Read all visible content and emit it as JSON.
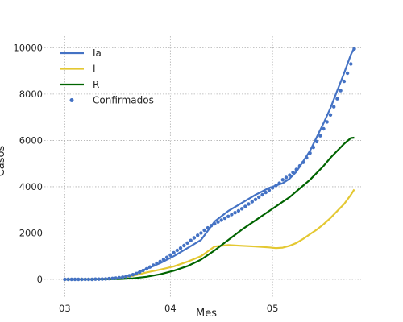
{
  "chart_data": {
    "type": "line",
    "title": "",
    "xlabel": "Mes",
    "ylabel": "Casos",
    "x_ticks": [
      {
        "label": "03",
        "day": 0
      },
      {
        "label": "04",
        "day": 31
      },
      {
        "label": "05",
        "day": 61
      }
    ],
    "xlim": [
      -6,
      87
    ],
    "ylim": [
      -800,
      10500
    ],
    "y_ticks": [
      0,
      2000,
      4000,
      6000,
      8000,
      10000
    ],
    "grid": true,
    "legend_position": "top-left",
    "series": [
      {
        "name": "Ia",
        "kind": "line",
        "color": "#4472c4",
        "x": [
          0,
          8,
          12,
          16,
          20,
          24,
          28,
          32,
          36,
          40,
          44,
          48,
          52,
          56,
          60,
          62,
          64,
          66,
          68,
          70,
          72,
          74,
          76,
          78,
          80,
          82,
          84,
          85
        ],
        "y": [
          0,
          10,
          25,
          60,
          200,
          450,
          700,
          1000,
          1350,
          1700,
          2500,
          2950,
          3300,
          3650,
          3950,
          4050,
          4150,
          4350,
          4650,
          5100,
          5550,
          6150,
          6750,
          7400,
          8150,
          8900,
          9700,
          10000
        ]
      },
      {
        "name": "I",
        "kind": "line",
        "color": "#e4c832",
        "x": [
          0,
          8,
          12,
          16,
          20,
          24,
          28,
          32,
          36,
          40,
          44,
          48,
          52,
          56,
          60,
          62,
          64,
          66,
          68,
          70,
          72,
          74,
          76,
          78,
          80,
          82,
          84,
          85
        ],
        "y": [
          0,
          5,
          20,
          50,
          150,
          300,
          420,
          560,
          760,
          1000,
          1420,
          1480,
          1450,
          1420,
          1380,
          1350,
          1370,
          1450,
          1570,
          1750,
          1950,
          2150,
          2380,
          2650,
          2950,
          3250,
          3650,
          3880
        ]
      },
      {
        "name": "R",
        "kind": "line",
        "color": "#006400",
        "x": [
          0,
          8,
          12,
          16,
          20,
          24,
          28,
          32,
          36,
          40,
          44,
          48,
          52,
          56,
          60,
          62,
          64,
          66,
          68,
          70,
          72,
          74,
          76,
          78,
          80,
          82,
          84,
          85
        ],
        "y": [
          0,
          0,
          5,
          15,
          45,
          110,
          220,
          370,
          570,
          850,
          1250,
          1700,
          2150,
          2550,
          2950,
          3150,
          3350,
          3550,
          3800,
          4050,
          4300,
          4600,
          4900,
          5250,
          5550,
          5850,
          6100,
          6120
        ]
      },
      {
        "name": "Confirmados",
        "kind": "scatter",
        "color": "#4472c4",
        "x": [
          0,
          1,
          2,
          3,
          4,
          5,
          6,
          7,
          8,
          9,
          10,
          11,
          12,
          13,
          14,
          15,
          16,
          17,
          18,
          19,
          20,
          21,
          22,
          23,
          24,
          25,
          26,
          27,
          28,
          29,
          30,
          31,
          32,
          33,
          34,
          35,
          36,
          37,
          38,
          39,
          40,
          41,
          42,
          43,
          44,
          45,
          46,
          47,
          48,
          49,
          50,
          51,
          52,
          53,
          54,
          55,
          56,
          57,
          58,
          59,
          60,
          61,
          62,
          63,
          64,
          65,
          66,
          67,
          68,
          69,
          70,
          71,
          72,
          73,
          74,
          75,
          76,
          77,
          78,
          79,
          80,
          81,
          82,
          83,
          84,
          85
        ],
        "y": [
          0,
          0,
          0,
          0,
          0,
          0,
          0,
          0,
          0,
          10,
          10,
          15,
          20,
          30,
          40,
          55,
          70,
          95,
          125,
          160,
          200,
          250,
          310,
          380,
          450,
          530,
          610,
          690,
          770,
          860,
          950,
          1050,
          1150,
          1250,
          1350,
          1460,
          1570,
          1680,
          1790,
          1900,
          2000,
          2120,
          2220,
          2320,
          2400,
          2480,
          2560,
          2640,
          2720,
          2800,
          2880,
          2960,
          3050,
          3150,
          3250,
          3350,
          3450,
          3550,
          3650,
          3750,
          3850,
          3950,
          4050,
          4150,
          4300,
          4400,
          4500,
          4620,
          4750,
          4900,
          5050,
          5250,
          5450,
          5700,
          5950,
          6200,
          6500,
          6800,
          7100,
          7450,
          7800,
          8150,
          8550,
          8900,
          9300,
          9950
        ]
      }
    ]
  }
}
